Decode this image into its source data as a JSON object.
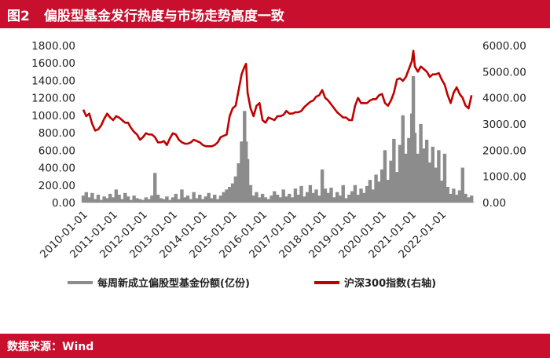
{
  "header": {
    "figure_label": "图2",
    "title": "偏股型基金发行热度与市场走势高度一致"
  },
  "footer": {
    "source": "数据来源：Wind"
  },
  "colors": {
    "brand": "#c8102e",
    "bar_series": "#8c8c8c",
    "line_series": "#c00000"
  },
  "chart_data": {
    "type": "bar",
    "title": "",
    "x_tick_labels": [
      "2010-01-01",
      "2011-01-01",
      "2012-01-01",
      "2013-01-01",
      "2014-01-01",
      "2015-01-01",
      "2016-01-01",
      "2017-01-01",
      "2018-01-01",
      "2019-01-01",
      "2020-01-01",
      "2021-01-01",
      "2022-01-01"
    ],
    "x_range": [
      2010.0,
      2023.1
    ],
    "y_left_ticks": [
      "0.00",
      "200.00",
      "400.00",
      "600.00",
      "800.00",
      "1000.00",
      "1200.00",
      "1400.00",
      "1600.00",
      "1800.00"
    ],
    "y_left_range": [
      0,
      1800
    ],
    "y_right_ticks": [
      "0.00",
      "1000.00",
      "2000.00",
      "3000.00",
      "4000.00",
      "5000.00",
      "6000.00"
    ],
    "y_right_range": [
      0,
      6000
    ],
    "series": [
      {
        "name": "每周新成立偏股型基金份额(亿份)",
        "kind": "bar",
        "axis": "left",
        "color": "#8c8c8c",
        "points": [
          [
            2010.0,
            80
          ],
          [
            2010.1,
            120
          ],
          [
            2010.2,
            60
          ],
          [
            2010.3,
            110
          ],
          [
            2010.4,
            40
          ],
          [
            2010.5,
            90
          ],
          [
            2010.6,
            30
          ],
          [
            2010.7,
            70
          ],
          [
            2010.8,
            50
          ],
          [
            2010.9,
            100
          ],
          [
            2011.0,
            60
          ],
          [
            2011.1,
            150
          ],
          [
            2011.2,
            90
          ],
          [
            2011.3,
            40
          ],
          [
            2011.4,
            110
          ],
          [
            2011.5,
            70
          ],
          [
            2011.6,
            30
          ],
          [
            2011.7,
            80
          ],
          [
            2011.8,
            50
          ],
          [
            2011.9,
            40
          ],
          [
            2012.0,
            30
          ],
          [
            2012.1,
            60
          ],
          [
            2012.2,
            40
          ],
          [
            2012.3,
            80
          ],
          [
            2012.4,
            340
          ],
          [
            2012.5,
            90
          ],
          [
            2012.6,
            50
          ],
          [
            2012.7,
            40
          ],
          [
            2012.8,
            70
          ],
          [
            2012.9,
            30
          ],
          [
            2013.0,
            60
          ],
          [
            2013.1,
            100
          ],
          [
            2013.2,
            40
          ],
          [
            2013.3,
            150
          ],
          [
            2013.4,
            60
          ],
          [
            2013.5,
            80
          ],
          [
            2013.6,
            40
          ],
          [
            2013.7,
            120
          ],
          [
            2013.8,
            50
          ],
          [
            2013.9,
            90
          ],
          [
            2014.0,
            40
          ],
          [
            2014.1,
            70
          ],
          [
            2014.2,
            110
          ],
          [
            2014.3,
            50
          ],
          [
            2014.4,
            90
          ],
          [
            2014.5,
            40
          ],
          [
            2014.6,
            80
          ],
          [
            2014.7,
            120
          ],
          [
            2014.8,
            150
          ],
          [
            2014.9,
            180
          ],
          [
            2015.0,
            220
          ],
          [
            2015.1,
            300
          ],
          [
            2015.2,
            450
          ],
          [
            2015.3,
            700
          ],
          [
            2015.4,
            1050
          ],
          [
            2015.45,
            700
          ],
          [
            2015.5,
            500
          ],
          [
            2015.6,
            200
          ],
          [
            2015.7,
            80
          ],
          [
            2015.8,
            120
          ],
          [
            2015.9,
            60
          ],
          [
            2016.0,
            100
          ],
          [
            2016.1,
            60
          ],
          [
            2016.2,
            40
          ],
          [
            2016.3,
            80
          ],
          [
            2016.4,
            130
          ],
          [
            2016.5,
            90
          ],
          [
            2016.6,
            60
          ],
          [
            2016.7,
            150
          ],
          [
            2016.8,
            70
          ],
          [
            2016.9,
            100
          ],
          [
            2017.0,
            60
          ],
          [
            2017.1,
            160
          ],
          [
            2017.2,
            90
          ],
          [
            2017.3,
            190
          ],
          [
            2017.4,
            70
          ],
          [
            2017.5,
            120
          ],
          [
            2017.6,
            200
          ],
          [
            2017.7,
            110
          ],
          [
            2017.8,
            150
          ],
          [
            2017.9,
            80
          ],
          [
            2018.0,
            380
          ],
          [
            2018.1,
            160
          ],
          [
            2018.2,
            110
          ],
          [
            2018.3,
            170
          ],
          [
            2018.4,
            60
          ],
          [
            2018.5,
            120
          ],
          [
            2018.6,
            80
          ],
          [
            2018.7,
            200
          ],
          [
            2018.8,
            50
          ],
          [
            2018.9,
            90
          ],
          [
            2019.0,
            130
          ],
          [
            2019.1,
            200
          ],
          [
            2019.2,
            90
          ],
          [
            2019.3,
            160
          ],
          [
            2019.4,
            110
          ],
          [
            2019.5,
            190
          ],
          [
            2019.6,
            260
          ],
          [
            2019.7,
            150
          ],
          [
            2019.8,
            320
          ],
          [
            2019.9,
            240
          ],
          [
            2020.0,
            380
          ],
          [
            2020.1,
            600
          ],
          [
            2020.2,
            260
          ],
          [
            2020.3,
            480
          ],
          [
            2020.4,
            730
          ],
          [
            2020.5,
            350
          ],
          [
            2020.6,
            660
          ],
          [
            2020.7,
            1000
          ],
          [
            2020.8,
            560
          ],
          [
            2020.9,
            740
          ],
          [
            2021.0,
            1020
          ],
          [
            2021.05,
            1450
          ],
          [
            2021.1,
            800
          ],
          [
            2021.2,
            560
          ],
          [
            2021.3,
            900
          ],
          [
            2021.4,
            620
          ],
          [
            2021.5,
            720
          ],
          [
            2021.6,
            460
          ],
          [
            2021.7,
            640
          ],
          [
            2021.8,
            400
          ],
          [
            2021.9,
            600
          ],
          [
            2022.0,
            250
          ],
          [
            2022.1,
            560
          ],
          [
            2022.2,
            180
          ],
          [
            2022.3,
            100
          ],
          [
            2022.4,
            160
          ],
          [
            2022.5,
            90
          ],
          [
            2022.6,
            140
          ],
          [
            2022.7,
            400
          ],
          [
            2022.8,
            100
          ],
          [
            2022.9,
            60
          ],
          [
            2023.0,
            80
          ]
        ]
      },
      {
        "name": "沪深300指数(右轴)",
        "kind": "line",
        "axis": "right",
        "color": "#c00000",
        "points": [
          [
            2010.0,
            3550
          ],
          [
            2010.1,
            3300
          ],
          [
            2010.2,
            3400
          ],
          [
            2010.3,
            3000
          ],
          [
            2010.4,
            2750
          ],
          [
            2010.5,
            2800
          ],
          [
            2010.6,
            2950
          ],
          [
            2010.7,
            3200
          ],
          [
            2010.8,
            3400
          ],
          [
            2010.9,
            3250
          ],
          [
            2011.0,
            3150
          ],
          [
            2011.1,
            3300
          ],
          [
            2011.2,
            3250
          ],
          [
            2011.3,
            3150
          ],
          [
            2011.4,
            3050
          ],
          [
            2011.5,
            3050
          ],
          [
            2011.6,
            2850
          ],
          [
            2011.7,
            2700
          ],
          [
            2011.8,
            2600
          ],
          [
            2011.9,
            2400
          ],
          [
            2012.0,
            2500
          ],
          [
            2012.1,
            2650
          ],
          [
            2012.2,
            2600
          ],
          [
            2012.3,
            2600
          ],
          [
            2012.4,
            2500
          ],
          [
            2012.5,
            2300
          ],
          [
            2012.6,
            2300
          ],
          [
            2012.7,
            2350
          ],
          [
            2012.8,
            2200
          ],
          [
            2012.9,
            2450
          ],
          [
            2013.0,
            2650
          ],
          [
            2013.1,
            2600
          ],
          [
            2013.2,
            2400
          ],
          [
            2013.3,
            2300
          ],
          [
            2013.4,
            2250
          ],
          [
            2013.5,
            2250
          ],
          [
            2013.6,
            2300
          ],
          [
            2013.7,
            2400
          ],
          [
            2013.8,
            2350
          ],
          [
            2013.9,
            2300
          ],
          [
            2014.0,
            2200
          ],
          [
            2014.1,
            2150
          ],
          [
            2014.2,
            2150
          ],
          [
            2014.3,
            2150
          ],
          [
            2014.4,
            2200
          ],
          [
            2014.5,
            2300
          ],
          [
            2014.6,
            2500
          ],
          [
            2014.7,
            2550
          ],
          [
            2014.8,
            2600
          ],
          [
            2014.9,
            3300
          ],
          [
            2015.0,
            3600
          ],
          [
            2015.1,
            3700
          ],
          [
            2015.2,
            4300
          ],
          [
            2015.3,
            4900
          ],
          [
            2015.4,
            5200
          ],
          [
            2015.45,
            5300
          ],
          [
            2015.5,
            4200
          ],
          [
            2015.6,
            3600
          ],
          [
            2015.7,
            3300
          ],
          [
            2015.8,
            3700
          ],
          [
            2015.9,
            3800
          ],
          [
            2016.0,
            3150
          ],
          [
            2016.1,
            3050
          ],
          [
            2016.2,
            3250
          ],
          [
            2016.3,
            3200
          ],
          [
            2016.4,
            3150
          ],
          [
            2016.5,
            3300
          ],
          [
            2016.6,
            3300
          ],
          [
            2016.7,
            3350
          ],
          [
            2016.8,
            3500
          ],
          [
            2016.9,
            3400
          ],
          [
            2017.0,
            3400
          ],
          [
            2017.1,
            3450
          ],
          [
            2017.2,
            3450
          ],
          [
            2017.3,
            3500
          ],
          [
            2017.4,
            3650
          ],
          [
            2017.5,
            3750
          ],
          [
            2017.6,
            3850
          ],
          [
            2017.7,
            3900
          ],
          [
            2017.8,
            4050
          ],
          [
            2017.9,
            4100
          ],
          [
            2018.0,
            4300
          ],
          [
            2018.1,
            4000
          ],
          [
            2018.2,
            3900
          ],
          [
            2018.3,
            3750
          ],
          [
            2018.4,
            3600
          ],
          [
            2018.5,
            3450
          ],
          [
            2018.6,
            3350
          ],
          [
            2018.7,
            3250
          ],
          [
            2018.8,
            3250
          ],
          [
            2018.9,
            3150
          ],
          [
            2019.0,
            3150
          ],
          [
            2019.1,
            3700
          ],
          [
            2019.2,
            4000
          ],
          [
            2019.3,
            3800
          ],
          [
            2019.4,
            3800
          ],
          [
            2019.5,
            3800
          ],
          [
            2019.6,
            3900
          ],
          [
            2019.7,
            3950
          ],
          [
            2019.8,
            3950
          ],
          [
            2019.9,
            4100
          ],
          [
            2020.0,
            4150
          ],
          [
            2020.1,
            3800
          ],
          [
            2020.2,
            3700
          ],
          [
            2020.3,
            3900
          ],
          [
            2020.4,
            4200
          ],
          [
            2020.5,
            4700
          ],
          [
            2020.6,
            4750
          ],
          [
            2020.7,
            4650
          ],
          [
            2020.8,
            4800
          ],
          [
            2020.9,
            5100
          ],
          [
            2021.0,
            5400
          ],
          [
            2021.05,
            5800
          ],
          [
            2021.1,
            5200
          ],
          [
            2021.2,
            5000
          ],
          [
            2021.3,
            5200
          ],
          [
            2021.4,
            5100
          ],
          [
            2021.5,
            5000
          ],
          [
            2021.6,
            4800
          ],
          [
            2021.7,
            4900
          ],
          [
            2021.8,
            4900
          ],
          [
            2021.9,
            4950
          ],
          [
            2022.0,
            4700
          ],
          [
            2022.1,
            4500
          ],
          [
            2022.2,
            4100
          ],
          [
            2022.3,
            3800
          ],
          [
            2022.4,
            4200
          ],
          [
            2022.5,
            4400
          ],
          [
            2022.6,
            4150
          ],
          [
            2022.7,
            4000
          ],
          [
            2022.8,
            3700
          ],
          [
            2022.9,
            3600
          ],
          [
            2023.0,
            4100
          ]
        ]
      }
    ],
    "legend": {
      "position": "bottom"
    },
    "grid": false
  }
}
